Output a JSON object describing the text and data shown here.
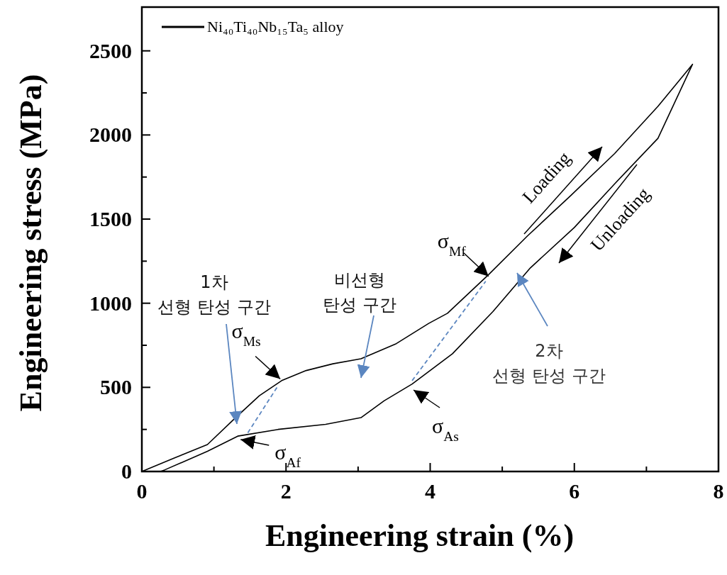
{
  "chart_data": {
    "type": "line",
    "xlabel": "Engineering strain (%)",
    "ylabel": "Engineering stress (MPa)",
    "xlim": [
      0,
      8
    ],
    "ylim": [
      0,
      2760
    ],
    "xticks": [
      0,
      {
        "value": 1,
        "label": null
      },
      2,
      {
        "value": 3,
        "label": null
      },
      4,
      {
        "value": 5,
        "label": null
      },
      6,
      {
        "value": 7,
        "label": null
      },
      8
    ],
    "yticks": [
      0,
      {
        "value": 250,
        "label": null
      },
      500,
      {
        "value": 750,
        "label": null
      },
      1000,
      {
        "value": 1250,
        "label": null
      },
      1500,
      {
        "value": 1750,
        "label": null
      },
      2000,
      {
        "value": 2250,
        "label": null
      },
      2500
    ],
    "legend": "top left",
    "series": [
      {
        "name": "Ni₄₀Ti₄₀Nb₁₅Ta₅ alloy",
        "color": "#000000",
        "x": [
          0,
          0.45,
          0.91,
          1.3,
          1.63,
          1.94,
          2.28,
          2.65,
          3.04,
          3.53,
          3.98,
          4.24,
          4.81,
          5.35,
          5.95,
          6.56,
          7.16,
          7.64,
          7.16,
          6.56,
          6.0,
          5.39,
          4.87,
          4.31,
          3.75,
          3.36,
          3.04,
          2.55,
          1.89,
          1.33,
          0.91,
          0.32,
          0.26
        ],
        "values": [
          0,
          80,
          160,
          320,
          450,
          540,
          600,
          640,
          670,
          760,
          880,
          940,
          1170,
          1400,
          1640,
          1890,
          2170,
          2420,
          1980,
          1710,
          1450,
          1210,
          950,
          700,
          520,
          420,
          320,
          280,
          250,
          210,
          120,
          10,
          0
        ]
      },
      {
        "color": "#5b86c0",
        "line_style": "dashed",
        "x": [
          1.47,
          1.89
        ],
        "values": [
          230,
          510
        ]
      },
      {
        "color": "#5b86c0",
        "line_style": "dashed",
        "x": [
          3.75,
          4.77
        ],
        "values": [
          540,
          1130
        ]
      }
    ],
    "annotations": [
      {
        "text": "σ$_{Ms}$",
        "x": 1.92,
        "y": 550
      },
      {
        "text": "σ$_{Af}$",
        "x": 1.37,
        "y": 190
      },
      {
        "text": "σ$_{Mf}$",
        "x": 4.81,
        "y": 1160
      },
      "σ$_{As}$",
      "Loading",
      "Unloading",
      "1차\n선형 탄성 구간",
      "비선형\n탄성 구간",
      "2차\n선형 탄성 구간"
    ]
  }
}
